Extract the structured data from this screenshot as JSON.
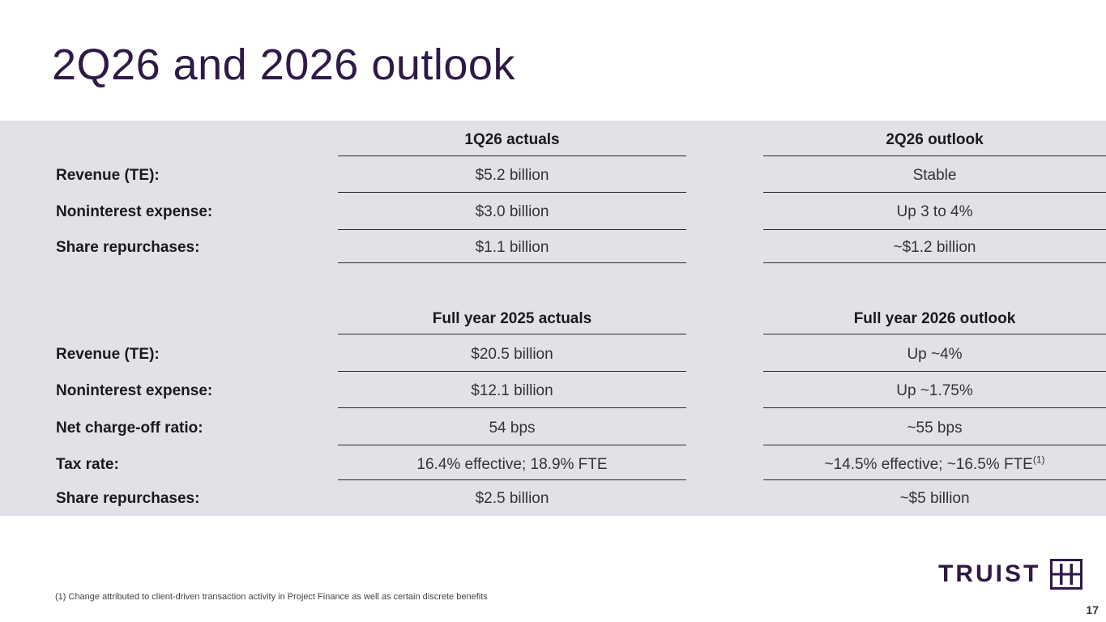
{
  "title": "2Q26 and 2026 outlook",
  "quarterly": {
    "col1_header": "1Q26 actuals",
    "col2_header": "2Q26 outlook",
    "rows": [
      {
        "label": "Revenue (TE):",
        "actual": "$5.2 billion",
        "outlook": "Stable"
      },
      {
        "label": "Noninterest expense:",
        "actual": "$3.0 billion",
        "outlook": "Up 3 to 4%"
      },
      {
        "label": "Share repurchases:",
        "actual": "$1.1 billion",
        "outlook": "~$1.2 billion"
      }
    ]
  },
  "annual": {
    "col1_header": "Full year 2025 actuals",
    "col2_header": "Full year 2026 outlook",
    "rows": [
      {
        "label": "Revenue (TE):",
        "actual": "$20.5 billion",
        "outlook": "Up ~4%"
      },
      {
        "label": "Noninterest expense:",
        "actual": "$12.1 billion",
        "outlook": "Up ~1.75%"
      },
      {
        "label": "Net charge-off ratio:",
        "actual": "54 bps",
        "outlook": "~55 bps"
      },
      {
        "label": "Tax rate:",
        "actual": "16.4% effective; 18.9% FTE",
        "outlook": "~14.5% effective; ~16.5% FTE",
        "outlook_sup": "(1)"
      },
      {
        "label": "Share repurchases:",
        "actual": "$2.5 billion",
        "outlook": "~$5 billion"
      }
    ]
  },
  "footnote": "(1) Change attributed to client-driven transaction activity in Project Finance as well as certain discrete benefits",
  "logo": {
    "text": "TRUIST",
    "icon": "truist-h-icon"
  },
  "page_number": "17",
  "colors": {
    "brand": "#2e1a47",
    "panel": "#e3e1e7"
  }
}
